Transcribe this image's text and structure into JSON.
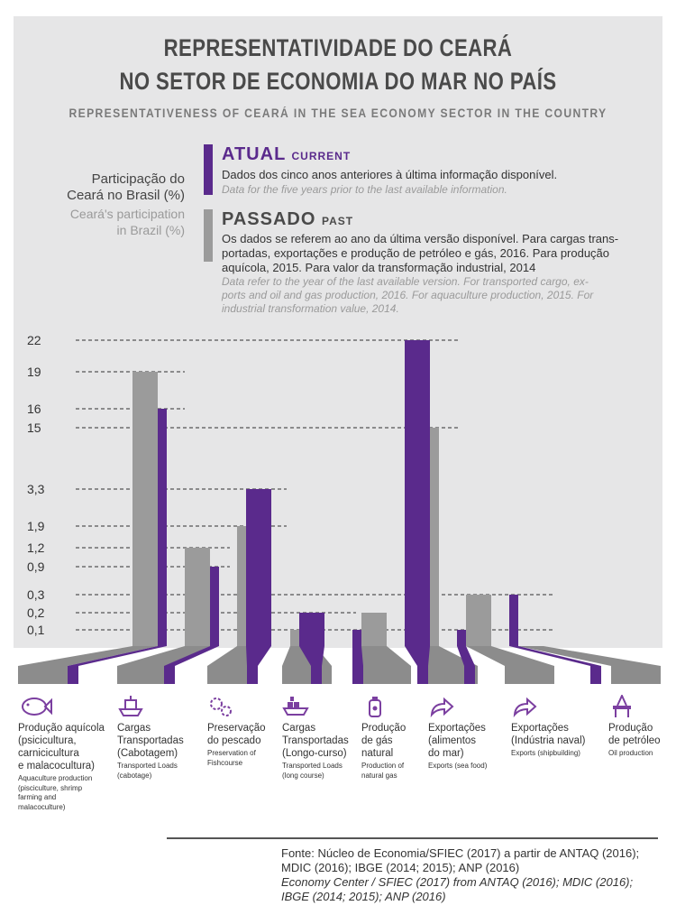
{
  "header": {
    "title_line1": "REPRESENTATIVIDADE DO CEARÁ",
    "title_line2": "NO SETOR DE ECONOMIA DO MAR NO PAÍS",
    "subtitle": "REPRESENTATIVENESS OF CEARÁ IN THE SEA ECONOMY SECTOR IN THE COUNTRY"
  },
  "legend": {
    "axis_label_pt_1": "Participação do",
    "axis_label_pt_2": "Ceará no Brasil (%)",
    "axis_label_en_1": "Ceará's participation",
    "axis_label_en_2": "in Brazil (%)",
    "current_title": "ATUAL",
    "current_title_en": "CURRENT",
    "current_text": "Dados dos cinco anos anteriores à última informação disponível.",
    "current_text_en": "Data for the five years prior to the last available information.",
    "past_title": "PASSADO",
    "past_title_en": "PAST",
    "past_text_1": "Os dados se referem ao ano da última versão disponível. Para cargas trans-",
    "past_text_2": "portadas, exportações e produção de petróleo e gás, 2016. Para produção",
    "past_text_3": "aquícola, 2015. Para valor da transformação industrial, 2014",
    "past_text_en_1": "Data refer to the year of the last available version. For transported cargo, ex-",
    "past_text_en_2": "ports and oil and gas production, 2016. For aquaculture production, 2015. For",
    "past_text_en_3": "industrial transformation value, 2014."
  },
  "colors": {
    "current": "#5a2a8c",
    "past": "#9b9b9b",
    "panel": "#e6e6e7"
  },
  "chart_data": {
    "type": "bar",
    "title": "REPRESENTATIVIDADE DO CEARÁ NO SETOR DE ECONOMIA DO MAR NO PAÍS",
    "ylabel": "Participação do Ceará no Brasil (%)",
    "yticks": [
      "22",
      "19",
      "16",
      "15",
      "3,3",
      "1,9",
      "1,2",
      "0,9",
      "0,3",
      "0,2",
      "0,1"
    ],
    "categories": [
      "Produção aquícola (psicicultura, carnicicultura e malacocultura)",
      "Cargas Transportadas (Cabotagem)",
      "Preservação do pescado",
      "Cargas Transportadas (Longo-curso)",
      "Produção de gás natural",
      "Exportações (alimentos do mar)",
      "Exportações (Indústria naval)",
      "Produção de petróleo"
    ],
    "series": [
      {
        "name": "ATUAL",
        "values": [
          16,
          0.9,
          3.3,
          0.2,
          0.1,
          22,
          0.1,
          0.3
        ]
      },
      {
        "name": "PASSADO",
        "values": [
          19,
          1.2,
          1.9,
          0.1,
          0.2,
          15,
          0.3,
          0
        ]
      }
    ]
  },
  "categories_labels": [
    {
      "icon": "fish-icon",
      "pt": [
        "Produção aquícola",
        "(psicicultura,",
        "carnicicultura",
        "e malacocultura)"
      ],
      "en": [
        "Aquaculture production",
        "(pisciculture, shrimp",
        "farming and",
        "malacoculture)"
      ]
    },
    {
      "icon": "ship-icon",
      "pt": [
        "Cargas",
        "Transportadas",
        "(Cabotagem)"
      ],
      "en": [
        "Transported Loads",
        "(cabotage)"
      ]
    },
    {
      "icon": "gears-icon",
      "pt": [
        "Preservação",
        "do pescado"
      ],
      "en": [
        "Preservation of",
        "Fishcourse"
      ]
    },
    {
      "icon": "cargo-ship-icon",
      "pt": [
        "Cargas",
        "Transportadas",
        "(Longo-curso)"
      ],
      "en": [
        "Transported Loads",
        "(long course)"
      ]
    },
    {
      "icon": "gas-cylinder-icon",
      "pt": [
        "Produção",
        "de gás",
        "natural"
      ],
      "en": [
        "Production of",
        "natural gas"
      ]
    },
    {
      "icon": "export-arrow-icon",
      "pt": [
        "Exportações",
        "(alimentos",
        "do mar)"
      ],
      "en": [
        "Exports (sea food)"
      ]
    },
    {
      "icon": "export-arrow-icon",
      "pt": [
        "Exportações",
        "(Indústria naval)"
      ],
      "en": [
        "Exports (shipbuilding)"
      ]
    },
    {
      "icon": "oil-platform-icon",
      "pt": [
        "Produção",
        "de petróleo"
      ],
      "en": [
        "Oil production"
      ]
    }
  ],
  "source": {
    "pt_1": "Fonte: Núcleo de Economia/SFIEC (2017) a partir de ANTAQ (2016);",
    "pt_2": "MDIC (2016); IBGE (2014; 2015); ANP (2016)",
    "en_1": "Economy Center / SFIEC (2017) from ANTAQ (2016); MDIC (2016);",
    "en_2": "IBGE (2014; 2015); ANP (2016)"
  }
}
